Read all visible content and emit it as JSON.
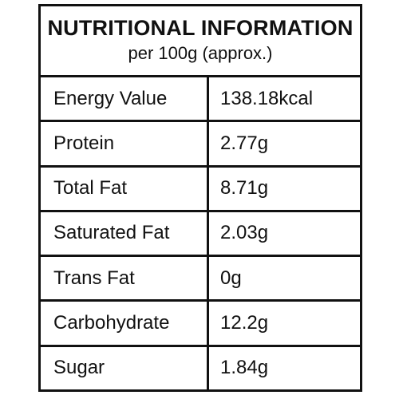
{
  "header": {
    "title": "NUTRITIONAL INFORMATION",
    "subtitle": "per 100g (approx.)"
  },
  "rows": [
    {
      "label": "Energy Value",
      "value": "138.18kcal"
    },
    {
      "label": "Protein",
      "value": "2.77g"
    },
    {
      "label": "Total Fat",
      "value": "8.71g"
    },
    {
      "label": "Saturated Fat",
      "value": "2.03g"
    },
    {
      "label": "Trans Fat",
      "value": "0g"
    },
    {
      "label": "Carbohydrate",
      "value": "12.2g"
    },
    {
      "label": "Sugar",
      "value": "1.84g"
    }
  ]
}
